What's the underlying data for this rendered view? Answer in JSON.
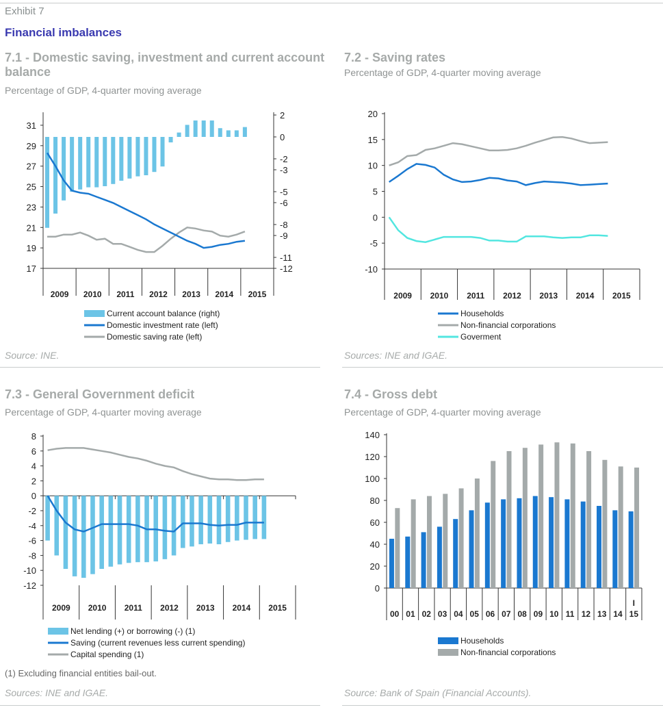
{
  "header": {
    "exhibit": "Exhibit 7",
    "title": "Financial imbalances"
  },
  "charts": [
    {
      "type": "bar+line",
      "title": "7.1 - Domestic saving, investment and current account balance",
      "subtitle": "Percentage of GDP, 4-quarter moving average",
      "source": "Source: INE.",
      "categories": [
        "2009",
        "2010",
        "2011",
        "2012",
        "2013",
        "2014",
        "2015"
      ],
      "y_left": {
        "range": [
          17,
          32
        ],
        "ticks": [
          17,
          19,
          21,
          23,
          25,
          27,
          29,
          31
        ]
      },
      "y_right": {
        "range": [
          -12,
          2
        ],
        "ticks": [
          -12,
          -11,
          -9,
          -8,
          -6,
          -5,
          -3,
          -2,
          0,
          2
        ]
      },
      "series": [
        {
          "name": "Current account balance (right)",
          "kind": "bar",
          "axis": "right",
          "color": "#6cc4e6",
          "values": [
            -8.3,
            -7.0,
            -5.8,
            -5.0,
            -4.8,
            -4.6,
            -4.6,
            -4.5,
            -4.3,
            -4.0,
            -3.8,
            -3.6,
            -3.5,
            -3.2,
            -2.7,
            -0.5,
            0.4,
            1.1,
            1.5,
            1.5,
            1.5,
            0.8,
            0.6,
            0.6,
            0.9
          ]
        },
        {
          "name": "Domestic investment rate (left)",
          "kind": "line",
          "axis": "left",
          "color": "#1a78d0",
          "values": [
            28.3,
            27.0,
            25.6,
            24.6,
            24.4,
            24.3,
            24.0,
            23.7,
            23.4,
            23.0,
            22.6,
            22.2,
            21.8,
            21.3,
            20.9,
            20.5,
            20.1,
            19.7,
            19.4,
            19.0,
            19.1,
            19.3,
            19.4,
            19.6,
            19.7
          ]
        },
        {
          "name": "Domestic saving rate (left)",
          "kind": "line",
          "axis": "left",
          "color": "#a4aaaa",
          "values": [
            20.1,
            20.1,
            20.3,
            20.3,
            20.5,
            20.2,
            19.8,
            19.9,
            19.4,
            19.4,
            19.1,
            18.8,
            18.6,
            18.6,
            19.2,
            19.9,
            20.5,
            21.0,
            20.9,
            20.7,
            20.6,
            20.2,
            20.1,
            20.3,
            20.6
          ]
        }
      ]
    },
    {
      "type": "line",
      "title": "7.2 - Saving rates",
      "subtitle": "Percentage of GDP, 4-quarter moving average",
      "source": "Sources: INE and IGAE.",
      "categories": [
        "2009",
        "2010",
        "2011",
        "2012",
        "2013",
        "2014",
        "2015"
      ],
      "y": {
        "range": [
          -10,
          20
        ],
        "ticks": [
          -10,
          -5,
          0,
          5,
          10,
          15,
          20
        ]
      },
      "series": [
        {
          "name": "Households",
          "color": "#1a78d0",
          "values": [
            6.8,
            8.0,
            9.3,
            10.3,
            10.1,
            9.6,
            8.2,
            7.3,
            6.8,
            6.9,
            7.2,
            7.6,
            7.5,
            7.1,
            6.9,
            6.2,
            6.6,
            6.9,
            6.8,
            6.7,
            6.5,
            6.2,
            6.3,
            6.4,
            6.5
          ]
        },
        {
          "name": "Non-financial corporations",
          "color": "#a4aaaa",
          "values": [
            10.0,
            10.6,
            11.8,
            12.0,
            13.0,
            13.3,
            13.8,
            14.3,
            14.1,
            13.7,
            13.3,
            12.9,
            12.9,
            13.0,
            13.3,
            13.8,
            14.4,
            14.9,
            15.4,
            15.5,
            15.2,
            14.7,
            14.3,
            14.4,
            14.5
          ]
        },
        {
          "name": "Goverment",
          "color": "#52e6e0",
          "values": [
            0.0,
            -2.5,
            -4.0,
            -4.6,
            -4.8,
            -4.3,
            -3.8,
            -3.8,
            -3.8,
            -3.8,
            -4.0,
            -4.5,
            -4.5,
            -4.7,
            -4.7,
            -3.7,
            -3.7,
            -3.7,
            -3.9,
            -4.0,
            -3.9,
            -3.9,
            -3.5,
            -3.5,
            -3.6
          ]
        }
      ]
    },
    {
      "type": "bar+line",
      "title": "7.3 - General Government deficit",
      "subtitle": "Percentage of GDP, 4-quarter moving average",
      "note": "(1) Excluding financial entities bail-out.",
      "source": "Sources: INE and IGAE.",
      "categories": [
        "2009",
        "2010",
        "2011",
        "2012",
        "2013",
        "2014",
        "2015"
      ],
      "y": {
        "range": [
          -12,
          8
        ],
        "ticks": [
          -12,
          -10,
          -8,
          -6,
          -4,
          -2,
          0,
          2,
          4,
          6,
          8
        ]
      },
      "series": [
        {
          "name": "Net lending (+) or borrowing (-) (1)",
          "kind": "bar",
          "color": "#6cc4e6",
          "values": [
            -6.0,
            -8.0,
            -9.8,
            -10.8,
            -11.0,
            -10.5,
            -9.8,
            -9.5,
            -9.2,
            -9.0,
            -8.9,
            -8.9,
            -8.8,
            -8.5,
            -8.0,
            -7.0,
            -6.8,
            -6.5,
            -6.4,
            -6.5,
            -6.2,
            -6.0,
            -5.9,
            -5.8,
            -5.8
          ]
        },
        {
          "name": "Saving (current revenues less current spending)",
          "kind": "line",
          "color": "#1a78d0",
          "values": [
            0.0,
            -2.0,
            -3.6,
            -4.5,
            -4.8,
            -4.3,
            -3.8,
            -3.8,
            -3.8,
            -3.8,
            -4.0,
            -4.5,
            -4.5,
            -4.7,
            -4.8,
            -3.7,
            -3.7,
            -3.7,
            -3.9,
            -4.0,
            -3.9,
            -3.9,
            -3.6,
            -3.6,
            -3.6
          ]
        },
        {
          "name": "Capital spending (1)",
          "kind": "line",
          "color": "#a4aaaa",
          "values": [
            6.1,
            6.3,
            6.4,
            6.4,
            6.4,
            6.2,
            6.0,
            5.8,
            5.5,
            5.2,
            5.0,
            4.7,
            4.3,
            4.0,
            3.8,
            3.3,
            2.9,
            2.6,
            2.3,
            2.2,
            2.2,
            2.1,
            2.1,
            2.2,
            2.2
          ]
        }
      ]
    },
    {
      "type": "bar",
      "title": "7.4 - Gross debt",
      "subtitle": "Percentage of GDP, 4-quarter moving average",
      "source": "Source: Bank of Spain (Financial Accounts).",
      "categories": [
        "00",
        "01",
        "02",
        "03",
        "04",
        "05",
        "06",
        "07",
        "08",
        "09",
        "10",
        "11",
        "12",
        "13",
        "14",
        "I 15"
      ],
      "y": {
        "range": [
          0,
          140
        ],
        "ticks": [
          0,
          20,
          40,
          60,
          80,
          100,
          120,
          140
        ]
      },
      "series": [
        {
          "name": "Households",
          "color": "#1a78d0",
          "values": [
            45,
            47,
            51,
            56,
            63,
            71,
            78,
            81,
            82,
            84,
            83,
            81,
            79,
            75,
            71,
            70
          ]
        },
        {
          "name": "Non-financial corporations",
          "color": "#a4aaaa",
          "values": [
            73,
            81,
            84,
            86,
            91,
            100,
            116,
            125,
            128,
            131,
            133,
            132,
            125,
            117,
            111,
            110
          ]
        }
      ]
    }
  ]
}
